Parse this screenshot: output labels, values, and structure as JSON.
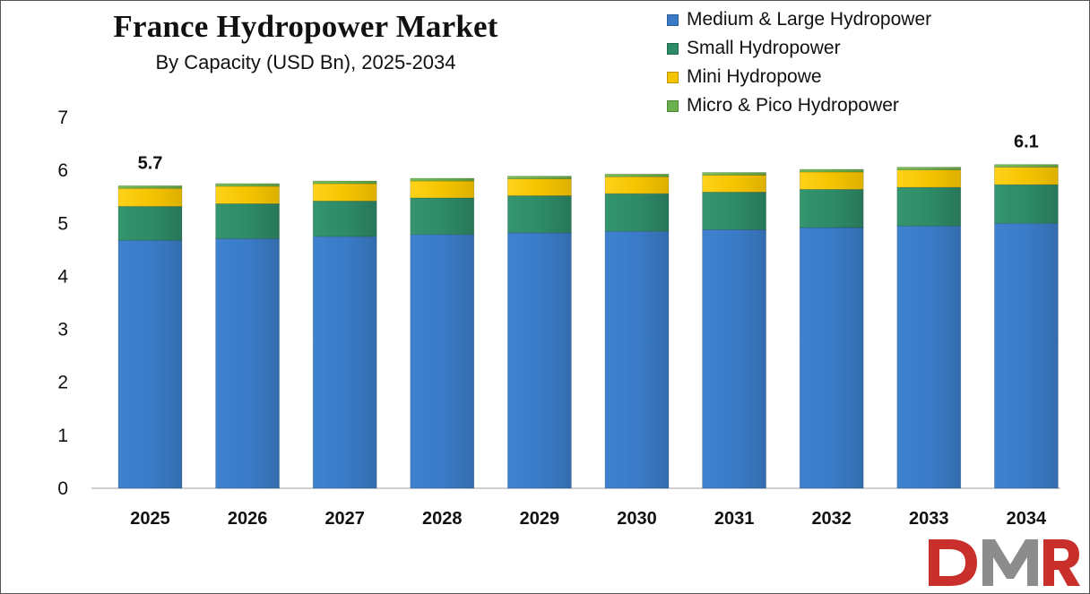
{
  "chart_data": {
    "type": "bar",
    "stacked": true,
    "title": "France Hydropower Market",
    "subtitle": "By Capacity (USD Bn), 2025-2034",
    "xlabel": "",
    "ylabel": "",
    "ylim": [
      0,
      7
    ],
    "yticks": [
      "0",
      "1",
      "2",
      "3",
      "4",
      "5",
      "6",
      "7"
    ],
    "grid": false,
    "legend_position": "top-right",
    "categories": [
      "2025",
      "2026",
      "2027",
      "2028",
      "2029",
      "2030",
      "2031",
      "2032",
      "2033",
      "2034"
    ],
    "series": [
      {
        "name": "Medium & Large Hydropower",
        "color": "#3a7bc8",
        "values": [
          4.68,
          4.71,
          4.75,
          4.79,
          4.82,
          4.85,
          4.88,
          4.92,
          4.95,
          5.0
        ]
      },
      {
        "name": "Small Hydropower",
        "color": "#2e8b67",
        "values": [
          0.64,
          0.66,
          0.67,
          0.69,
          0.7,
          0.71,
          0.71,
          0.72,
          0.73,
          0.73
        ]
      },
      {
        "name": "Mini Hydropowe",
        "color": "#f5c400",
        "values": [
          0.34,
          0.33,
          0.33,
          0.32,
          0.32,
          0.32,
          0.32,
          0.33,
          0.33,
          0.33
        ]
      },
      {
        "name": "Micro & Pico Hydropower",
        "color": "#6ab04c",
        "values": [
          0.05,
          0.05,
          0.05,
          0.05,
          0.05,
          0.05,
          0.05,
          0.05,
          0.05,
          0.05
        ]
      }
    ],
    "annotations": [
      {
        "category": "2025",
        "text": "5.7"
      },
      {
        "category": "2034",
        "text": "6.1"
      }
    ]
  },
  "watermark": {
    "text": "DMR",
    "colors": [
      "#c9302c",
      "#8c8c8c"
    ]
  }
}
